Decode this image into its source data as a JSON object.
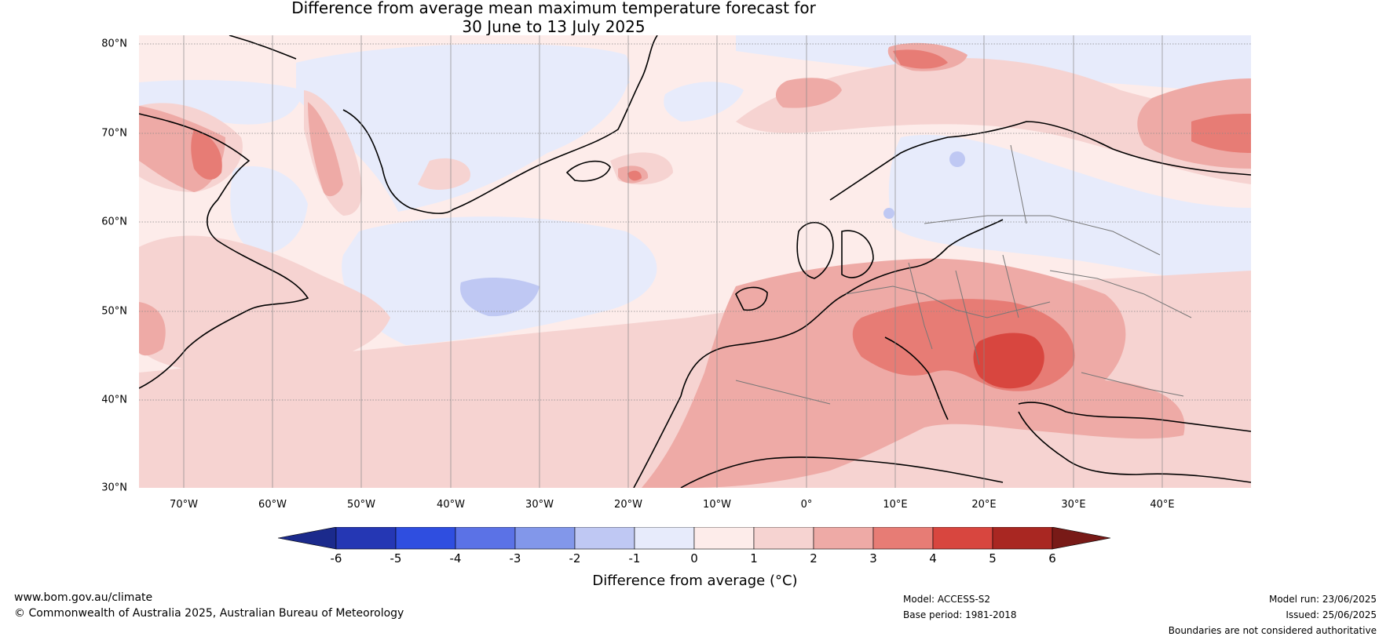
{
  "title": {
    "line1": "Difference from average mean maximum temperature forecast for",
    "line2": "30 June to 13 July 2025"
  },
  "latitudes": [
    "80°N",
    "70°N",
    "60°N",
    "50°N",
    "40°N",
    "30°N"
  ],
  "longitudes": [
    "70°W",
    "60°W",
    "50°W",
    "40°W",
    "30°W",
    "20°W",
    "10°W",
    "0°",
    "10°E",
    "20°E",
    "30°E",
    "40°E"
  ],
  "colorbar": {
    "ticks": [
      "-6",
      "-5",
      "-4",
      "-3",
      "-2",
      "-1",
      "0",
      "1",
      "2",
      "3",
      "4",
      "5",
      "6"
    ],
    "colors": [
      "#1b2a8c",
      "#2537b4",
      "#2f4ee0",
      "#5b72e6",
      "#8297ea",
      "#bfc8f3",
      "#e7ebfb",
      "#fdecea",
      "#f6d3d1",
      "#eeaaa6",
      "#e77c75",
      "#d8463f",
      "#a92722",
      "#781a17"
    ],
    "label": "Difference from average (°C)"
  },
  "footer": {
    "url": "www.bom.gov.au/climate",
    "copyright": "© Commonwealth of Australia 2025, Australian Bureau of Meteorology",
    "model": "Model: ACCESS-S2",
    "base_period": "Base period: 1981-2018",
    "model_run": "Model run: 23/06/2025",
    "issued": "Issued: 25/06/2025",
    "disclaimer": "Boundaries are not considered authoritative"
  }
}
